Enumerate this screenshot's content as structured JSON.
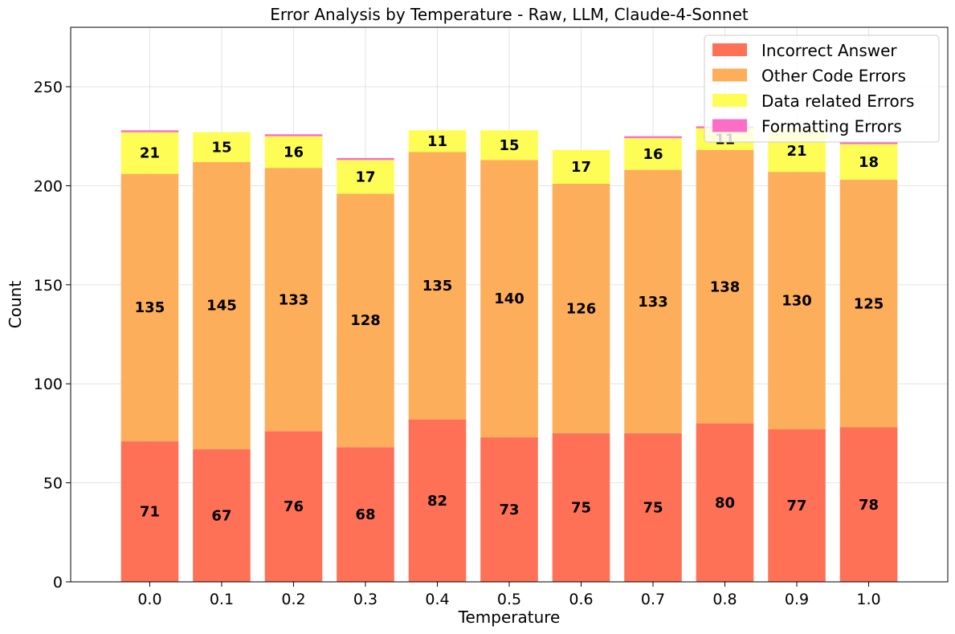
{
  "chart_data": {
    "type": "bar",
    "stacked": true,
    "title": "Error Analysis by Temperature - Raw, LLM, Claude-4-Sonnet",
    "xlabel": "Temperature",
    "ylabel": "Count",
    "ylim": [
      0,
      280
    ],
    "yticks": [
      0,
      50,
      100,
      150,
      200,
      250
    ],
    "grid": true,
    "legend_position": "top-right",
    "categories": [
      "0.0",
      "0.1",
      "0.2",
      "0.3",
      "0.4",
      "0.5",
      "0.6",
      "0.7",
      "0.8",
      "0.9",
      "1.0"
    ],
    "series": [
      {
        "name": "Incorrect Answer",
        "color": "#ff7157",
        "values": [
          71,
          67,
          76,
          68,
          82,
          73,
          75,
          75,
          80,
          77,
          78
        ]
      },
      {
        "name": "Other Code Errors",
        "color": "#fdae5a",
        "values": [
          135,
          145,
          133,
          128,
          135,
          140,
          126,
          133,
          138,
          130,
          125
        ]
      },
      {
        "name": "Data related Errors",
        "color": "#fdfd55",
        "values": [
          21,
          15,
          16,
          17,
          11,
          15,
          17,
          16,
          11,
          21,
          18
        ]
      },
      {
        "name": "Formatting Errors",
        "color": "#fb6ec5",
        "values": [
          1,
          0,
          1,
          1,
          0,
          0,
          0,
          1,
          1,
          0,
          1
        ]
      }
    ]
  }
}
